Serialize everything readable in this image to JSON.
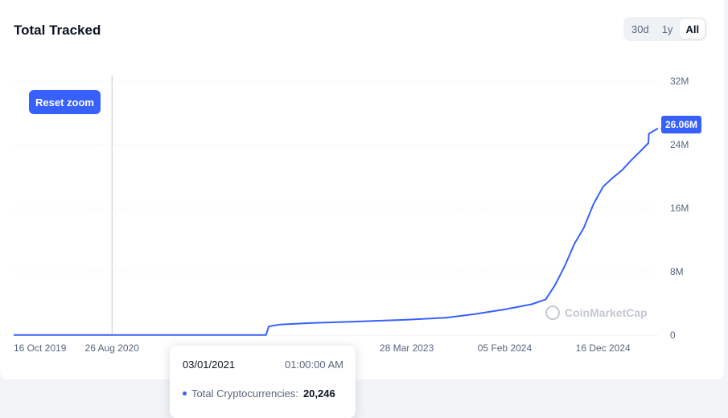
{
  "header": {
    "title": "Total Tracked"
  },
  "range_buttons": [
    {
      "label": "30d",
      "active": false
    },
    {
      "label": "1y",
      "active": false
    },
    {
      "label": "All",
      "active": true
    }
  ],
  "reset_zoom_label": "Reset zoom",
  "watermark": "CoinMarketCap",
  "last_value_label": "26.06M",
  "tooltip": {
    "date": "03/01/2021",
    "time": "01:00:00 AM",
    "series_label": "Total Cryptocurrencies:",
    "value": "20,246"
  },
  "colors": {
    "line": "#3861fb",
    "badge": "#3861fb"
  },
  "chart_data": {
    "type": "line",
    "title": "Total Tracked",
    "x_tick_labels": [
      "16 Oct 2019",
      "26 Aug 2020",
      "28 Mar 2023",
      "05 Feb 2024",
      "16 Dec 2024"
    ],
    "y_tick_labels": [
      "0",
      "8M",
      "16M",
      "24M",
      "32M"
    ],
    "ylim": [
      0,
      32000000
    ],
    "xlim": [
      "2019-10-16",
      "2025-06-10"
    ],
    "grid": true,
    "series": [
      {
        "x": [
          "2019-10-16",
          "2020-08-26",
          "2021-03-01",
          "2022-01-01",
          "2022-01-10",
          "2022-02-15",
          "2022-06-01",
          "2022-10-01",
          "2023-03-28",
          "2023-08-01",
          "2023-11-01",
          "2024-02-05",
          "2024-05-01",
          "2024-06-15",
          "2024-07-15",
          "2024-08-15",
          "2024-09-15",
          "2024-10-15",
          "2024-11-15",
          "2024-12-16",
          "2025-01-15",
          "2025-02-15",
          "2025-03-15",
          "2025-04-15",
          "2025-05-10",
          "2025-05-12",
          "2025-06-10"
        ],
        "y": [
          20246,
          20246,
          20246,
          20246,
          1100000,
          1350000,
          1550000,
          1700000,
          1950000,
          2200000,
          2650000,
          3250000,
          3900000,
          4500000,
          6300000,
          8700000,
          11500000,
          13500000,
          16500000,
          18700000,
          19800000,
          20800000,
          22000000,
          23200000,
          24200000,
          25400000,
          26060000
        ]
      }
    ],
    "last_value": 26060000
  }
}
